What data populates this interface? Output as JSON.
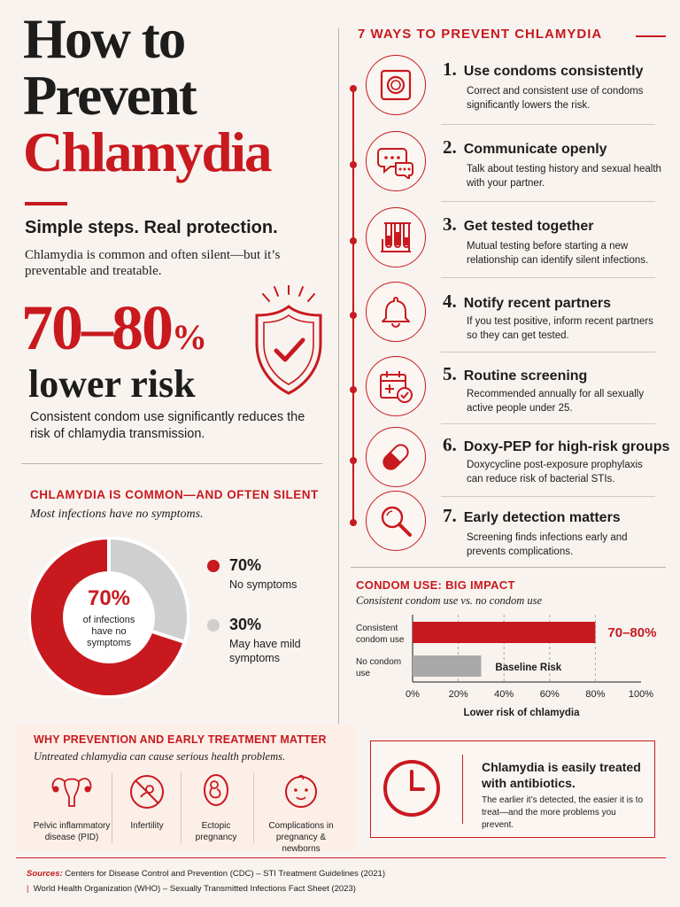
{
  "title": {
    "line1": "How to",
    "line2": "Prevent",
    "line3": "Chlamydia"
  },
  "tagline": "Simple steps. Real protection.",
  "intro": "Chlamydia is common and often silent—but it’s preventable and treatable.",
  "big_stat": {
    "value": "70–80",
    "percent": "%",
    "label": "lower risk",
    "description": "Consistent condom use significantly reduces the risk of chlamydia transmission."
  },
  "common": {
    "title": "CHLAMYDIA IS COMMON—AND OFTEN SILENT",
    "subtitle": "Most infections have no symptoms.",
    "center_pct": "70%",
    "center_label": "of infections have no symptoms",
    "legend": [
      {
        "pct": "70%",
        "label": "No symptoms",
        "value": 70,
        "color": "#c8191f"
      },
      {
        "pct": "30%",
        "label": "May have mild symptoms",
        "value": 30,
        "color": "#cfcfcf"
      }
    ]
  },
  "ways": {
    "title": "7 WAYS TO PREVENT CHLAMYDIA",
    "items": [
      {
        "num": "1.",
        "title": "Use condoms consistently",
        "desc": "Correct and consistent use of condoms significantly lowers the risk.",
        "icon": "condom-icon"
      },
      {
        "num": "2.",
        "title": "Communicate openly",
        "desc": "Talk about testing history and sexual health with your partner.",
        "icon": "chat-icon"
      },
      {
        "num": "3.",
        "title": "Get tested together",
        "desc": "Mutual testing before starting a new relationship can identify silent infections.",
        "icon": "test-tubes-icon"
      },
      {
        "num": "4.",
        "title": "Notify recent partners",
        "desc": "If you test positive, inform recent partners so they can get tested.",
        "icon": "bell-icon"
      },
      {
        "num": "5.",
        "title": "Routine screening",
        "desc": "Recommended annually for all sexually active people under 25.",
        "icon": "calendar-icon"
      },
      {
        "num": "6.",
        "title": "Doxy-PEP for high-risk groups",
        "desc": "Doxycycline post-exposure prophylaxis can reduce risk of bacterial STIs.",
        "icon": "pill-icon"
      },
      {
        "num": "7.",
        "title": "Early detection matters",
        "desc": "Screening finds infections early and prevents complications.",
        "icon": "magnifier-icon"
      }
    ]
  },
  "chart_data": {
    "type": "bar",
    "orientation": "horizontal",
    "title": "CONDOM USE: BIG IMPACT",
    "subtitle": "Consistent condom use vs. no condom use",
    "categories": [
      "Consistent condom use",
      "No condom use"
    ],
    "values": [
      80,
      30
    ],
    "bar_labels": [
      "70–80%",
      "Baseline Risk"
    ],
    "colors": [
      "#c8191f",
      "#a9a9a9"
    ],
    "xlabel": "Lower risk of chlamydia",
    "xlim": [
      0,
      100
    ],
    "ticks": [
      "0%",
      "20%",
      "40%",
      "60%",
      "80%",
      "100%"
    ],
    "tick_values": [
      0,
      20,
      40,
      60,
      80,
      100
    ],
    "grid": true
  },
  "why": {
    "title": "WHY PREVENTION AND EARLY TREATMENT MATTER",
    "subtitle": "Untreated chlamydia can cause serious health problems.",
    "items": [
      {
        "label": "Pelvic inflammatory disease (PID)",
        "icon": "uterus-icon"
      },
      {
        "label": "Infertility",
        "icon": "infertility-icon"
      },
      {
        "label": "Ectopic pregnancy",
        "icon": "ectopic-pregnancy-icon"
      },
      {
        "label": "Complications in pregnancy & newborns",
        "icon": "baby-icon"
      }
    ]
  },
  "treat": {
    "title": "Chlamydia is easily treated with antibiotics.",
    "desc": "The earlier it’s detected, the easier it is to treat—and the more problems you prevent.",
    "icon": "clock-icon"
  },
  "sources": {
    "label": "Sources:",
    "line1": "Centers for Disease Control and Prevention (CDC) – STI Treatment Guidelines (2021)",
    "line2": "World Health Organization (WHO) – Sexually Transmitted Infections Fact Sheet (2023)"
  }
}
